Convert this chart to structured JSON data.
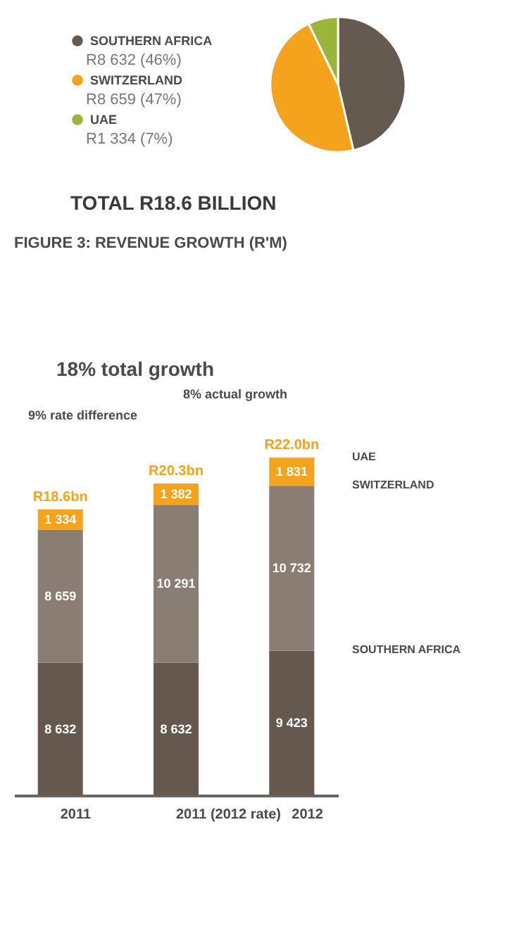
{
  "chart_data": [
    {
      "type": "pie",
      "categories": [
        "SOUTHERN AFRICA",
        "SWITZERLAND",
        "UAE"
      ],
      "values": [
        8632,
        8659,
        1334
      ],
      "value_labels": [
        "R8 632 (46%)",
        "R8 659 (47%)",
        "R1 334 (7%)"
      ],
      "colors": [
        "#655a50",
        "#f5a31c",
        "#9ab53a"
      ],
      "legend": "left",
      "annotations": [
        "TOTAL R18.6 BILLION"
      ]
    },
    {
      "type": "bar",
      "stacked": true,
      "title": "FIGURE 3: REVENUE GROWTH (R'M)",
      "categories": [
        "2011",
        "2011 (2012 rate)",
        "2012"
      ],
      "series": [
        {
          "name": "SOUTHERN AFRICA",
          "color": "#65594f",
          "values": [
            8632,
            8632,
            9423
          ],
          "value_labels": [
            "8 632",
            "8 632",
            "9 423"
          ]
        },
        {
          "name": "SWITZERLAND",
          "color": "#8a7d73",
          "values": [
            8659,
            10291,
            10732
          ],
          "value_labels": [
            "8 659",
            "10 291",
            "10 732"
          ]
        },
        {
          "name": "UAE",
          "color": "#f5a31c",
          "values": [
            1334,
            1382,
            1831
          ],
          "value_labels": [
            "1 334",
            "1 382",
            "1 831"
          ]
        }
      ],
      "totals": [
        "R18.6bn",
        "R20.3bn",
        "R22.0bn"
      ],
      "annotations": [
        "18% total growth",
        "8% actual growth",
        "9% rate difference"
      ]
    }
  ]
}
